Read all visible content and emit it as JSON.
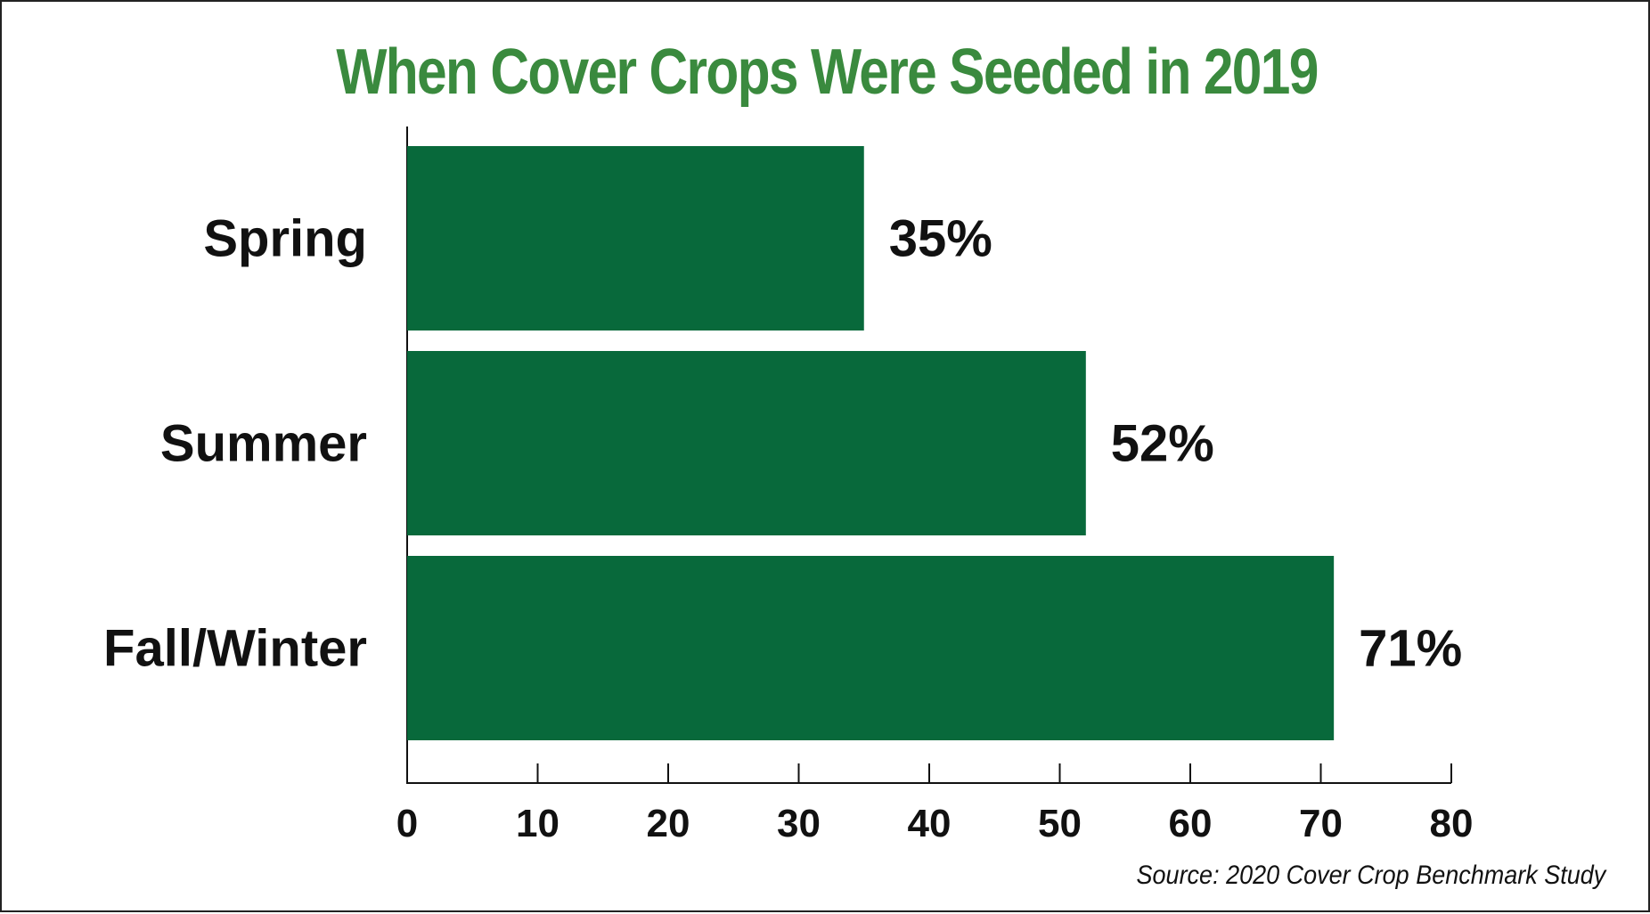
{
  "colors": {
    "title": "#3a8a3e",
    "bar": "#08693b",
    "text": "#111111",
    "axis": "#111111"
  },
  "source": "Source: 2020 Cover Crop Benchmark Study",
  "chart_data": {
    "type": "bar",
    "orientation": "horizontal",
    "title": "When Cover Crops Were Seeded in 2019",
    "xlabel": "",
    "ylabel": "",
    "categories": [
      "Spring",
      "Summer",
      "Fall/Winter"
    ],
    "values": [
      35,
      52,
      71
    ],
    "value_labels": [
      "35%",
      "52%",
      "71%"
    ],
    "xlim": [
      0,
      80
    ],
    "xticks": [
      0,
      10,
      20,
      30,
      40,
      50,
      60,
      70,
      80
    ],
    "grid": false,
    "legend": "none"
  }
}
